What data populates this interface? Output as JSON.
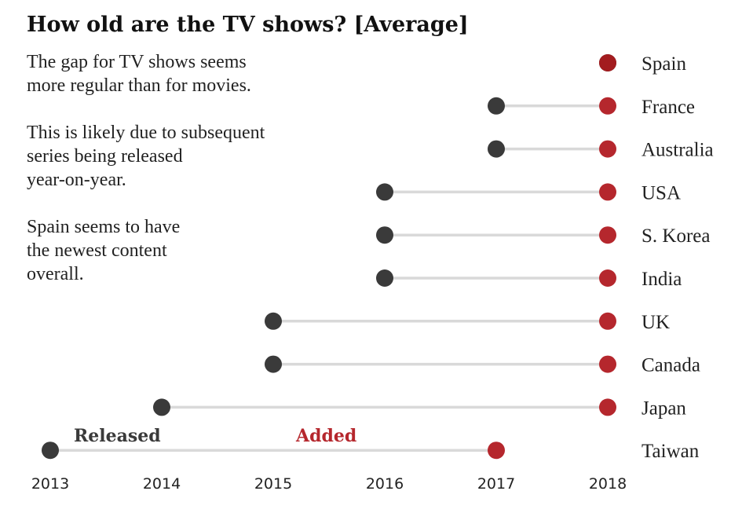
{
  "chart_data": {
    "type": "dumbbell",
    "title": "How old are the TV shows? [Average]",
    "annotation_lines": [
      "The gap for TV shows seems",
      "more regular than for movies.",
      "",
      "This is likely due to subsequent",
      "series being released",
      "year-on-year.",
      "",
      "Spain seems to have",
      "the newest content",
      "overall."
    ],
    "xlim": [
      2013,
      2018
    ],
    "x_ticks": [
      "2013",
      "2014",
      "2015",
      "2016",
      "2017",
      "2018"
    ],
    "legend": {
      "released": "Released",
      "added": "Added"
    },
    "colors": {
      "released": "#3a3a3a",
      "added": "#b5272d",
      "connector": "#d9d9d9"
    },
    "series": [
      {
        "country": "Spain",
        "released": 2018,
        "added": 2018
      },
      {
        "country": "France",
        "released": 2017,
        "added": 2018
      },
      {
        "country": "Australia",
        "released": 2017,
        "added": 2018
      },
      {
        "country": "USA",
        "released": 2016,
        "added": 2018
      },
      {
        "country": "S. Korea",
        "released": 2016,
        "added": 2018
      },
      {
        "country": "India",
        "released": 2016,
        "added": 2018
      },
      {
        "country": "UK",
        "released": 2015,
        "added": 2018
      },
      {
        "country": "Canada",
        "released": 2015,
        "added": 2018
      },
      {
        "country": "Japan",
        "released": 2014,
        "added": 2018
      },
      {
        "country": "Taiwan",
        "released": 2013,
        "added": 2017
      }
    ]
  }
}
